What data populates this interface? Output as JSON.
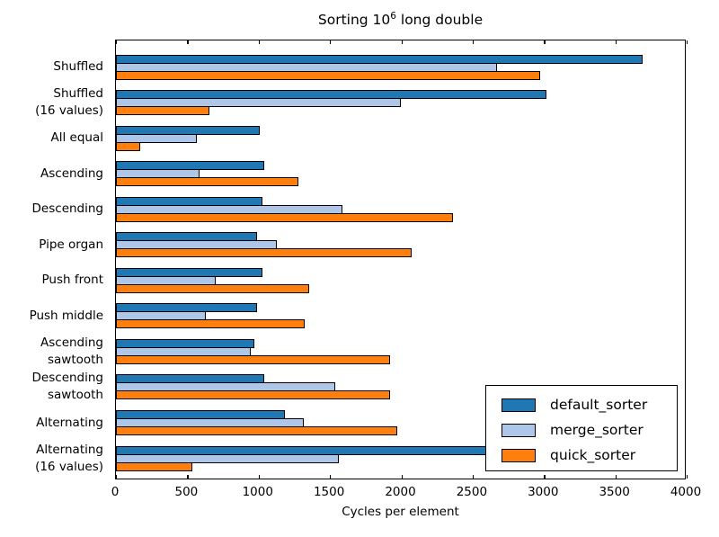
{
  "header": {
    "title": {
      "prefix": "Sorting 10",
      "exponent": "6",
      "suffix": " long double"
    }
  },
  "chart_data": {
    "type": "bar",
    "orientation": "horizontal",
    "title": "Sorting 10^6 long double",
    "xlabel": "Cycles per element",
    "xlim": [
      0,
      4000
    ],
    "xticks": [
      0,
      500,
      1000,
      1500,
      2000,
      2500,
      3000,
      3500,
      4000
    ],
    "grid": false,
    "legend_position": "lower right",
    "bar_edge_color": "#000000",
    "categories": [
      "Shuffled",
      "Shuffled\n(16 values)",
      "All equal",
      "Ascending",
      "Descending",
      "Pipe organ",
      "Push front",
      "Push middle",
      "Ascending\nsawtooth",
      "Descending\nsawtooth",
      "Alternating",
      "Alternating\n(16 values)"
    ],
    "series": [
      {
        "name": "default_sorter",
        "color": "#1f77b4",
        "values": [
          3700,
          3030,
          1010,
          1040,
          1030,
          990,
          1030,
          990,
          970,
          1040,
          1190,
          2900
        ]
      },
      {
        "name": "merge_sorter",
        "color": "#aec7e8",
        "values": [
          2680,
          2000,
          570,
          590,
          1590,
          1130,
          700,
          630,
          950,
          1540,
          1320,
          1570
        ]
      },
      {
        "name": "quick_sorter",
        "color": "#ff7f0e",
        "values": [
          2980,
          660,
          170,
          1280,
          2370,
          2080,
          1360,
          1330,
          1930,
          1930,
          1980,
          540
        ]
      }
    ]
  }
}
